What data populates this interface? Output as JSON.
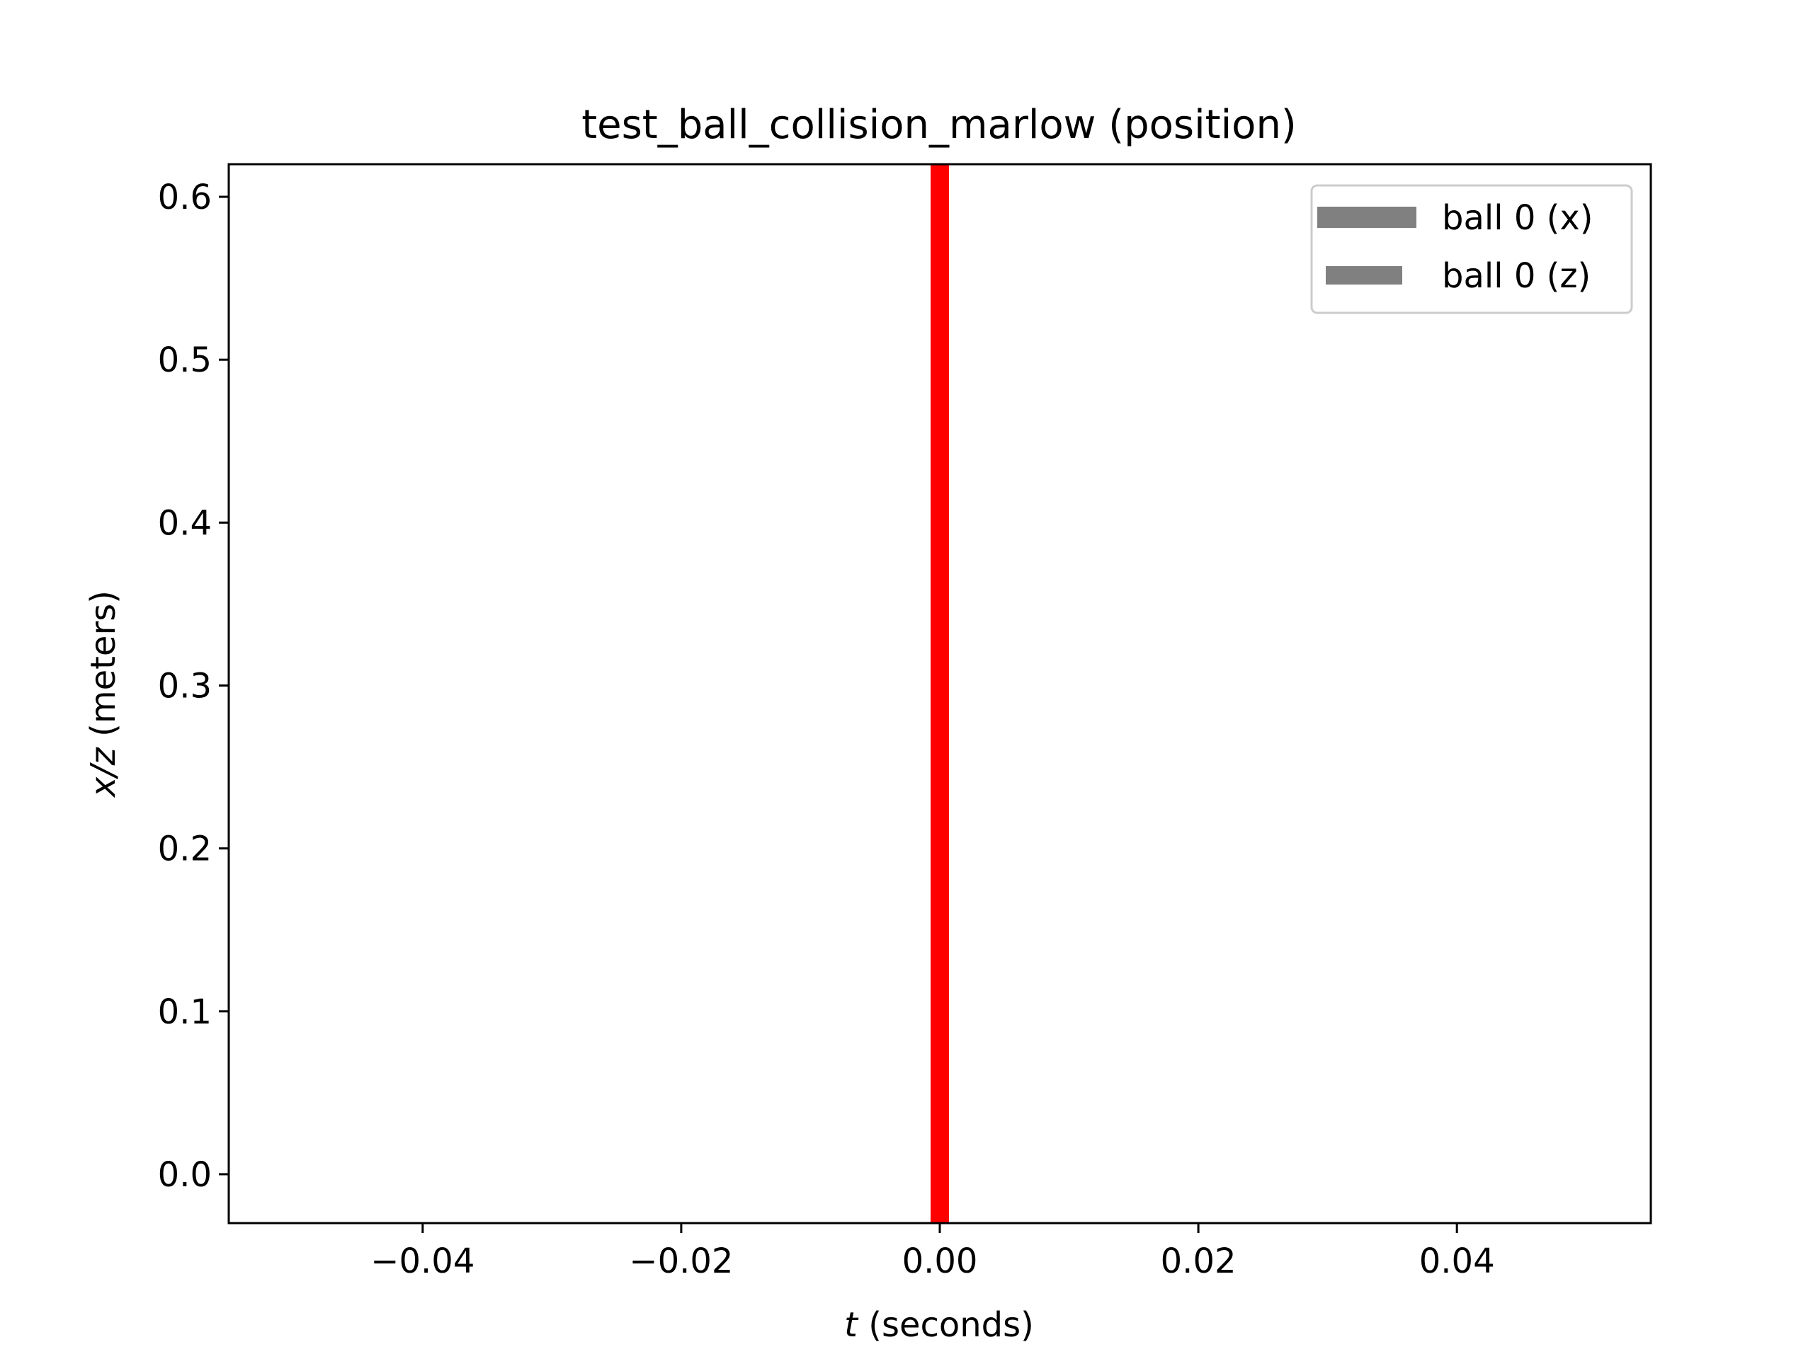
{
  "chart_data": {
    "type": "line",
    "title": "test_ball_collision_marlow (position)",
    "xlabel_symbol": "t",
    "xlabel_unit": " (seconds)",
    "ylabel_symbol": "x/z",
    "ylabel_unit": " (meters)",
    "xlim": [
      -0.055,
      0.055
    ],
    "ylim": [
      -0.03,
      0.62
    ],
    "xticks": [
      -0.04,
      -0.02,
      0.0,
      0.02,
      0.04
    ],
    "xtick_labels": [
      "−0.04",
      "−0.02",
      "0.00",
      "0.02",
      "0.04"
    ],
    "yticks": [
      0.0,
      0.1,
      0.2,
      0.3,
      0.4,
      0.5,
      0.6
    ],
    "ytick_labels": [
      "0.0",
      "0.1",
      "0.2",
      "0.3",
      "0.4",
      "0.5",
      "0.6"
    ],
    "grid": false,
    "legend_position": "top-right",
    "series": [
      {
        "name": "ball 0 (x)",
        "color": "#808080",
        "style": "solid-thick",
        "x": [],
        "y": []
      },
      {
        "name": "ball 0 (z)",
        "color": "#808080",
        "style": "solid-medium",
        "x": [],
        "y": []
      }
    ],
    "vlines": [
      {
        "x": 0.0,
        "color": "#ff0000"
      }
    ]
  }
}
